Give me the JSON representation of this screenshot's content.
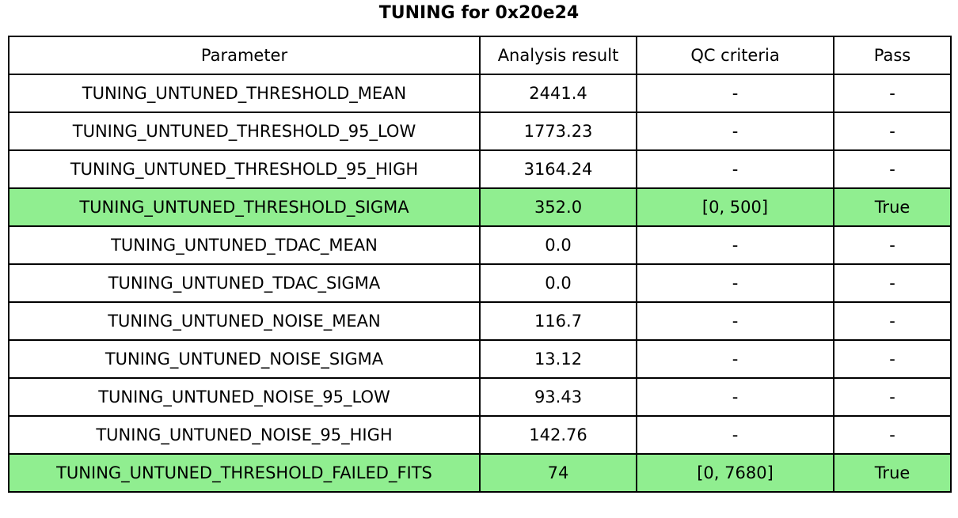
{
  "title": "TUNING for 0x20e24",
  "colors": {
    "highlight_green": "#90EE90",
    "border": "#000000",
    "background": "#ffffff",
    "text": "#000000"
  },
  "chart_data": {
    "type": "table",
    "title": "TUNING for 0x20e24",
    "columns": [
      "Parameter",
      "Analysis result",
      "QC criteria",
      "Pass"
    ],
    "rows": [
      {
        "parameter": "TUNING_UNTUNED_THRESHOLD_MEAN",
        "result": "2441.4",
        "qc": "-",
        "pass": "-",
        "highlighted": false
      },
      {
        "parameter": "TUNING_UNTUNED_THRESHOLD_95_LOW",
        "result": "1773.23",
        "qc": "-",
        "pass": "-",
        "highlighted": false
      },
      {
        "parameter": "TUNING_UNTUNED_THRESHOLD_95_HIGH",
        "result": "3164.24",
        "qc": "-",
        "pass": "-",
        "highlighted": false
      },
      {
        "parameter": "TUNING_UNTUNED_THRESHOLD_SIGMA",
        "result": "352.0",
        "qc": "[0, 500]",
        "pass": "True",
        "highlighted": true
      },
      {
        "parameter": "TUNING_UNTUNED_TDAC_MEAN",
        "result": "0.0",
        "qc": "-",
        "pass": "-",
        "highlighted": false
      },
      {
        "parameter": "TUNING_UNTUNED_TDAC_SIGMA",
        "result": "0.0",
        "qc": "-",
        "pass": "-",
        "highlighted": false
      },
      {
        "parameter": "TUNING_UNTUNED_NOISE_MEAN",
        "result": "116.7",
        "qc": "-",
        "pass": "-",
        "highlighted": false
      },
      {
        "parameter": "TUNING_UNTUNED_NOISE_SIGMA",
        "result": "13.12",
        "qc": "-",
        "pass": "-",
        "highlighted": false
      },
      {
        "parameter": "TUNING_UNTUNED_NOISE_95_LOW",
        "result": "93.43",
        "qc": "-",
        "pass": "-",
        "highlighted": false
      },
      {
        "parameter": "TUNING_UNTUNED_NOISE_95_HIGH",
        "result": "142.76",
        "qc": "-",
        "pass": "-",
        "highlighted": false
      },
      {
        "parameter": "TUNING_UNTUNED_THRESHOLD_FAILED_FITS",
        "result": "74",
        "qc": "[0, 7680]",
        "pass": "True",
        "highlighted": true
      }
    ],
    "layout": {
      "legend": "none",
      "grid": "full cell borders",
      "highlighted_row_indexes": [
        3,
        10
      ]
    }
  }
}
